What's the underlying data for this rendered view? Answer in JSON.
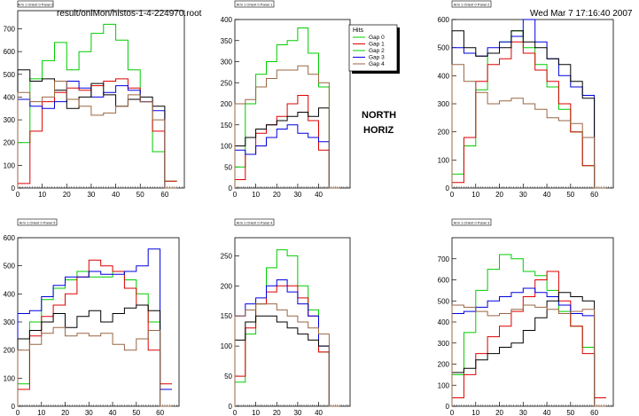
{
  "header": {
    "file": "result/onlMon/histos-1-4-224970.root",
    "timestamp": "Wed Mar  7 17:16:40 2007"
  },
  "side_labels": [
    "NORTH",
    "HORIZ"
  ],
  "legend": {
    "title": "Hits",
    "entries": [
      {
        "name": "Gap 0",
        "color": "#00cc00"
      },
      {
        "name": "Gap 1",
        "color": "#dd0000"
      },
      {
        "name": "Gap 2",
        "color": "#00cc00"
      },
      {
        "name": "Gap 3",
        "color": "#0000dd"
      },
      {
        "name": "Gap 4",
        "color": "#996644"
      }
    ]
  },
  "chart_data": [
    {
      "type": "line",
      "title": "Arm 1 Orient 0 Panel 0",
      "xlim": [
        0,
        68
      ],
      "ylim": [
        0,
        780
      ],
      "xticks": [
        0,
        10,
        20,
        30,
        40,
        50,
        60
      ],
      "yticks": [
        0,
        100,
        200,
        300,
        400,
        500,
        600,
        700
      ],
      "x": [
        0,
        5,
        10,
        15,
        20,
        25,
        30,
        35,
        40,
        45,
        50,
        55,
        60
      ],
      "series": [
        {
          "color": "#00cc00",
          "values": [
            200,
            480,
            560,
            640,
            520,
            600,
            680,
            720,
            650,
            520,
            380,
            160,
            30
          ]
        },
        {
          "color": "#dd0000",
          "values": [
            20,
            250,
            380,
            420,
            440,
            430,
            450,
            470,
            480,
            440,
            380,
            250,
            30
          ]
        },
        {
          "color": "#0000dd",
          "values": [
            390,
            360,
            350,
            380,
            470,
            440,
            400,
            420,
            450,
            430,
            380,
            340,
            0
          ]
        },
        {
          "color": "#000000",
          "values": [
            520,
            470,
            480,
            430,
            350,
            400,
            460,
            410,
            360,
            390,
            400,
            360,
            0
          ]
        },
        {
          "color": "#996644",
          "values": [
            420,
            380,
            400,
            470,
            390,
            360,
            320,
            330,
            360,
            410,
            380,
            300,
            0
          ]
        }
      ]
    },
    {
      "type": "line",
      "title": "Arm 1 Orient 0 Panel 1",
      "xlim": [
        0,
        55
      ],
      "ylim": [
        0,
        400
      ],
      "xticks": [
        0,
        10,
        20,
        30,
        40
      ],
      "yticks": [
        0,
        50,
        100,
        150,
        200,
        250,
        300,
        350,
        400
      ],
      "x": [
        0,
        5,
        10,
        15,
        20,
        25,
        30,
        35,
        40,
        45
      ],
      "series": [
        {
          "color": "#00cc00",
          "values": [
            50,
            200,
            270,
            300,
            340,
            350,
            380,
            320,
            240,
            0
          ]
        },
        {
          "color": "#dd0000",
          "values": [
            20,
            80,
            130,
            150,
            170,
            200,
            220,
            160,
            90,
            0
          ]
        },
        {
          "color": "#0000dd",
          "values": [
            90,
            80,
            100,
            120,
            140,
            150,
            130,
            120,
            110,
            0
          ]
        },
        {
          "color": "#000000",
          "values": [
            100,
            120,
            140,
            150,
            160,
            170,
            180,
            170,
            190,
            0
          ]
        },
        {
          "color": "#996644",
          "values": [
            200,
            210,
            240,
            260,
            280,
            280,
            290,
            270,
            250,
            0
          ]
        }
      ]
    },
    {
      "type": "line",
      "title": "Arm 1 Orient 0 Panel 2",
      "xlim": [
        0,
        68
      ],
      "ylim": [
        0,
        600
      ],
      "xticks": [
        0,
        10,
        20,
        30,
        40,
        50,
        60
      ],
      "yticks": [
        0,
        100,
        200,
        300,
        400,
        500,
        600
      ],
      "x": [
        0,
        5,
        10,
        15,
        20,
        25,
        30,
        35,
        40,
        45,
        50,
        55,
        60
      ],
      "series": [
        {
          "color": "#00cc00",
          "values": [
            50,
            150,
            350,
            480,
            520,
            560,
            500,
            440,
            360,
            280,
            200,
            80,
            0
          ]
        },
        {
          "color": "#dd0000",
          "values": [
            20,
            180,
            380,
            440,
            460,
            520,
            480,
            420,
            380,
            300,
            200,
            80,
            0
          ]
        },
        {
          "color": "#0000dd",
          "values": [
            500,
            480,
            470,
            500,
            520,
            540,
            600,
            520,
            460,
            400,
            360,
            330,
            0
          ]
        },
        {
          "color": "#000000",
          "values": [
            560,
            500,
            470,
            480,
            500,
            560,
            520,
            500,
            460,
            440,
            380,
            320,
            0
          ]
        },
        {
          "color": "#996644",
          "values": [
            440,
            380,
            340,
            300,
            310,
            320,
            300,
            280,
            250,
            240,
            230,
            180,
            0
          ]
        }
      ]
    },
    {
      "type": "line",
      "title": "Arm 1 Orient 0 Panel 5",
      "xlim": [
        0,
        68
      ],
      "ylim": [
        0,
        600
      ],
      "xticks": [
        0,
        10,
        20,
        30,
        40,
        50,
        60
      ],
      "yticks": [
        0,
        100,
        200,
        300,
        400,
        500,
        600
      ],
      "x": [
        0,
        5,
        10,
        15,
        20,
        25,
        30,
        35,
        40,
        45,
        50,
        55,
        60
      ],
      "series": [
        {
          "color": "#00cc00",
          "values": [
            80,
            300,
            380,
            420,
            450,
            480,
            460,
            460,
            480,
            450,
            400,
            300,
            60
          ]
        },
        {
          "color": "#dd0000",
          "values": [
            60,
            250,
            320,
            360,
            400,
            460,
            520,
            500,
            480,
            420,
            360,
            200,
            80
          ]
        },
        {
          "color": "#0000dd",
          "values": [
            330,
            340,
            390,
            430,
            460,
            460,
            480,
            470,
            470,
            480,
            500,
            560,
            60
          ]
        },
        {
          "color": "#000000",
          "values": [
            240,
            270,
            300,
            330,
            280,
            320,
            340,
            300,
            330,
            350,
            360,
            340,
            0
          ]
        },
        {
          "color": "#996644",
          "values": [
            200,
            220,
            260,
            280,
            250,
            260,
            250,
            260,
            220,
            200,
            240,
            270,
            0
          ]
        }
      ]
    },
    {
      "type": "line",
      "title": "Arm 1 Orient 0 Panel 4",
      "xlim": [
        0,
        55
      ],
      "ylim": [
        0,
        280
      ],
      "xticks": [
        0,
        10,
        20,
        30,
        40
      ],
      "yticks": [
        0,
        50,
        100,
        150,
        200,
        250
      ],
      "x": [
        0,
        5,
        10,
        15,
        20,
        25,
        30,
        35,
        40,
        45
      ],
      "series": [
        {
          "color": "#00cc00",
          "values": [
            40,
            120,
            170,
            230,
            260,
            250,
            200,
            160,
            90,
            0
          ]
        },
        {
          "color": "#dd0000",
          "values": [
            50,
            130,
            170,
            190,
            200,
            200,
            180,
            150,
            90,
            0
          ]
        },
        {
          "color": "#0000dd",
          "values": [
            150,
            170,
            180,
            200,
            210,
            190,
            170,
            150,
            100,
            0
          ]
        },
        {
          "color": "#000000",
          "values": [
            110,
            140,
            150,
            150,
            140,
            130,
            120,
            110,
            100,
            0
          ]
        },
        {
          "color": "#996644",
          "values": [
            150,
            160,
            170,
            170,
            160,
            150,
            140,
            130,
            120,
            0
          ]
        }
      ]
    },
    {
      "type": "line",
      "title": "Arm 1 Orient 0 Panel 3",
      "xlim": [
        0,
        68
      ],
      "ylim": [
        0,
        800
      ],
      "xticks": [
        0,
        10,
        20,
        30,
        40,
        50,
        60
      ],
      "yticks": [
        0,
        100,
        200,
        300,
        400,
        500,
        600,
        700
      ],
      "x": [
        0,
        5,
        10,
        15,
        20,
        25,
        30,
        35,
        40,
        45,
        50,
        55,
        60
      ],
      "series": [
        {
          "color": "#00cc00",
          "values": [
            150,
            350,
            550,
            650,
            720,
            700,
            640,
            620,
            550,
            450,
            380,
            280,
            0
          ]
        },
        {
          "color": "#dd0000",
          "values": [
            40,
            150,
            250,
            330,
            380,
            450,
            520,
            600,
            640,
            500,
            380,
            250,
            40
          ]
        },
        {
          "color": "#0000dd",
          "values": [
            440,
            450,
            470,
            500,
            520,
            540,
            560,
            540,
            520,
            480,
            440,
            430,
            0
          ]
        },
        {
          "color": "#000000",
          "values": [
            160,
            180,
            220,
            250,
            280,
            300,
            360,
            420,
            500,
            540,
            520,
            500,
            0
          ]
        },
        {
          "color": "#996644",
          "values": [
            480,
            470,
            450,
            430,
            440,
            460,
            480,
            470,
            460,
            440,
            450,
            460,
            0
          ]
        }
      ]
    }
  ]
}
